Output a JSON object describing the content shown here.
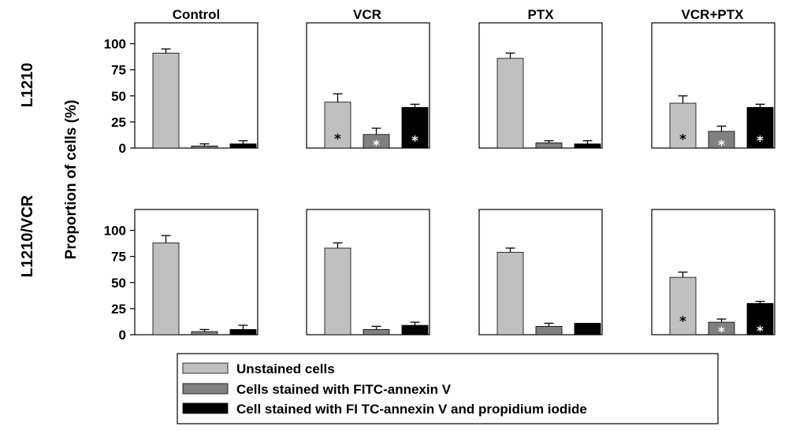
{
  "chart_data": {
    "type": "bar",
    "column_titles": [
      "Control",
      "VCR",
      "PTX",
      "VCR+PTX"
    ],
    "row_labels": [
      "L1210",
      "L1210/VCR"
    ],
    "ylabel": "Proportion of cells (%)",
    "ylim": [
      0,
      120
    ],
    "yticks": [
      0,
      25,
      50,
      75,
      100
    ],
    "series": [
      {
        "name": "Unstained cells",
        "color": "#c0c0c0"
      },
      {
        "name": "Cells stained with FITC-annexin V",
        "color": "#808080"
      },
      {
        "name": "Cell stained with FI TC-annexin V and propidium iodide",
        "color": "#000000"
      }
    ],
    "panels": [
      {
        "row": 0,
        "col": 0,
        "values": [
          91,
          2,
          4
        ],
        "errors": [
          4,
          2,
          3
        ],
        "stars": [
          false,
          false,
          false
        ]
      },
      {
        "row": 0,
        "col": 1,
        "values": [
          44,
          13,
          39
        ],
        "errors": [
          8,
          6,
          3
        ],
        "stars": [
          true,
          true,
          true
        ]
      },
      {
        "row": 0,
        "col": 2,
        "values": [
          86,
          5,
          4
        ],
        "errors": [
          5,
          2,
          3
        ],
        "stars": [
          false,
          false,
          false
        ]
      },
      {
        "row": 0,
        "col": 3,
        "values": [
          43,
          16,
          39
        ],
        "errors": [
          7,
          5,
          3
        ],
        "stars": [
          true,
          true,
          true
        ]
      },
      {
        "row": 1,
        "col": 0,
        "values": [
          88,
          3,
          5
        ],
        "errors": [
          7,
          2,
          4
        ],
        "stars": [
          false,
          false,
          false
        ]
      },
      {
        "row": 1,
        "col": 1,
        "values": [
          83,
          5,
          9
        ],
        "errors": [
          5,
          3,
          3
        ],
        "stars": [
          false,
          false,
          false
        ]
      },
      {
        "row": 1,
        "col": 2,
        "values": [
          79,
          8,
          11
        ],
        "errors": [
          4,
          3,
          0
        ],
        "stars": [
          false,
          false,
          false
        ]
      },
      {
        "row": 1,
        "col": 3,
        "values": [
          55,
          12,
          30
        ],
        "errors": [
          5,
          3,
          2
        ],
        "stars": [
          true,
          true,
          true
        ]
      }
    ],
    "star_symbol": "*",
    "star_colors": [
      "#000000",
      "#ffffff",
      "#ffffff"
    ]
  }
}
